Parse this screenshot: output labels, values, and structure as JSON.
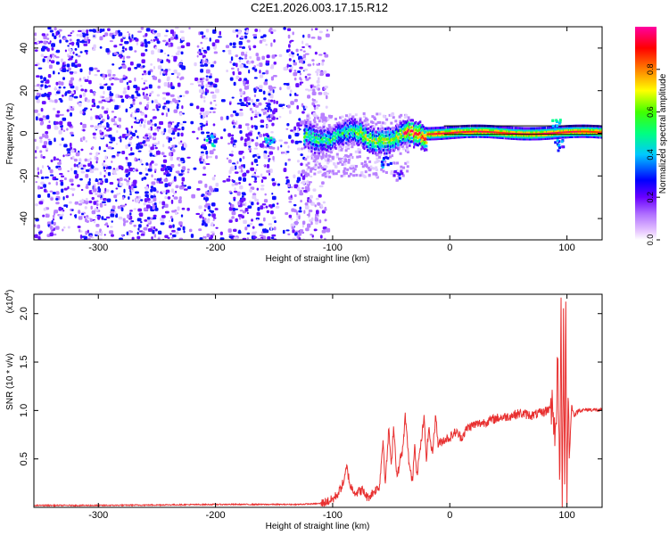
{
  "title": "C2E1.2026.003.17.15.R12",
  "chart_data": [
    {
      "type": "heatmap",
      "xlabel": "Height of straight line (km)",
      "ylabel": "Frequency (Hz)",
      "xlim": [
        -355,
        130
      ],
      "ylim": [
        -50,
        50
      ],
      "x_ticks": [
        -300,
        -200,
        -100,
        0,
        100
      ],
      "y_ticks": [
        -40,
        -20,
        0,
        20,
        40
      ],
      "colorbar": {
        "label": "Normalized spectral amplitude",
        "range": [
          0,
          1
        ],
        "ticks": [
          "0.0",
          "0.2",
          "0.4",
          "0.6",
          "0.8"
        ],
        "colormap": [
          "#ffffff",
          "#d8b8ff",
          "#6a00ff",
          "#0000ff",
          "#00ffff",
          "#00ff00",
          "#ffff00",
          "#ff8000",
          "#ff0000",
          "#ff00a0"
        ]
      },
      "features": {
        "noise_region_x": [
          -355,
          -115
        ],
        "signal_ridge_center_hz": 1,
        "signal_ridge_x": [
          -125,
          130
        ]
      }
    },
    {
      "type": "line",
      "xlabel": "Height of straight line (km)",
      "ylabel": "SNR (10 * v/v)",
      "y_multiplier": "(x10",
      "y_multiplier_exp": "4",
      "y_multiplier_close": ")",
      "xlim": [
        -355,
        130
      ],
      "ylim": [
        0,
        2.2
      ],
      "x_ticks": [
        -300,
        -200,
        -100,
        0,
        100
      ],
      "y_ticks": [
        "0.5",
        "1.0",
        "1.5",
        "2.0"
      ],
      "color": "#e83030",
      "series": [
        {
          "x": [
            -355,
            -300,
            -200,
            -130,
            -110,
            -100,
            -95,
            -90,
            -88,
            -85,
            -80,
            -75,
            -70,
            -65,
            -60,
            -57,
            -55,
            -52,
            -50,
            -48,
            -45,
            -42,
            -40,
            -38,
            -35,
            -32,
            -30,
            -28,
            -25,
            -22,
            -20,
            -18,
            -15,
            -12,
            -10,
            -5,
            0,
            5,
            10,
            15,
            20,
            30,
            40,
            50,
            60,
            70,
            80,
            85,
            88,
            90,
            92,
            94,
            95,
            96,
            97,
            98,
            99,
            100,
            101,
            102,
            104,
            106,
            110,
            120,
            130
          ],
          "y": [
            0.02,
            0.02,
            0.03,
            0.03,
            0.04,
            0.08,
            0.15,
            0.28,
            0.42,
            0.22,
            0.15,
            0.18,
            0.1,
            0.16,
            0.22,
            0.7,
            0.25,
            0.82,
            0.4,
            0.85,
            0.3,
            0.52,
            0.6,
            0.95,
            0.48,
            0.25,
            0.65,
            0.35,
            0.62,
            0.92,
            0.5,
            0.82,
            0.55,
            0.95,
            0.65,
            0.7,
            0.72,
            0.78,
            0.72,
            0.82,
            0.85,
            0.88,
            0.92,
            0.94,
            0.97,
            0.95,
            0.98,
            1.02,
            1.12,
            0.6,
            1.5,
            0.25,
            2.18,
            0.05,
            1.95,
            0.3,
            2.05,
            0.08,
            1.3,
            0.5,
            1.05,
            0.95,
            1.0,
            1.01,
            1.0
          ]
        }
      ]
    }
  ]
}
